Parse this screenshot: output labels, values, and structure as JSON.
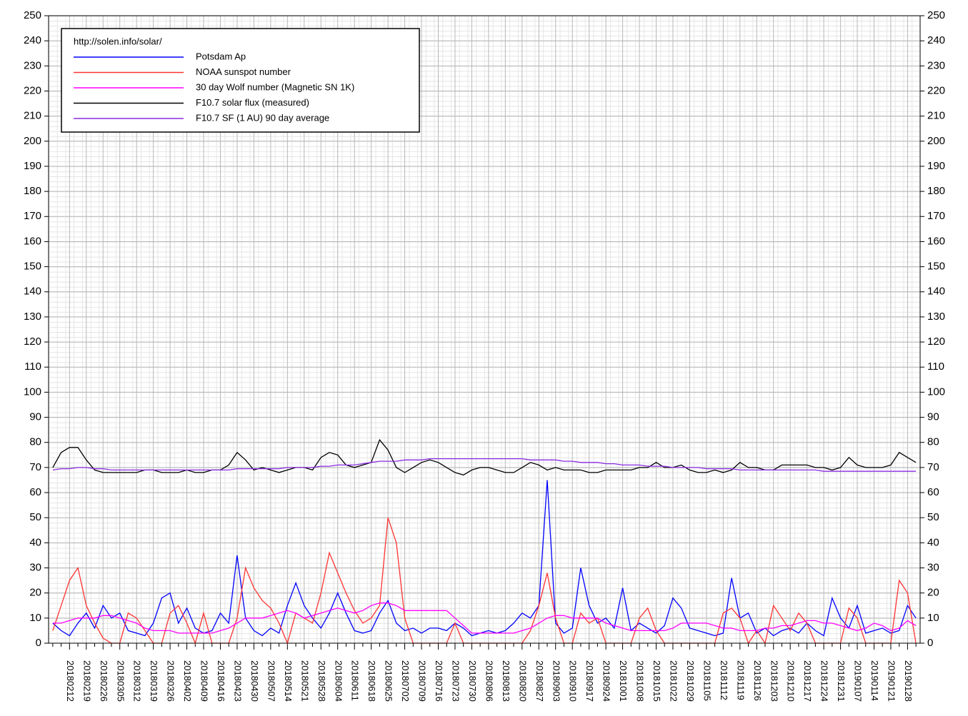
{
  "chart_data": {
    "type": "line",
    "legend_title": "http://solen.info/solar/",
    "legend_position": "upper left",
    "grid": true,
    "ylim": [
      0,
      250
    ],
    "yticks": [
      0,
      10,
      20,
      30,
      40,
      50,
      60,
      70,
      80,
      90,
      100,
      110,
      120,
      130,
      140,
      150,
      160,
      170,
      180,
      190,
      200,
      210,
      220,
      230,
      240,
      250
    ],
    "categories": [
      null,
      null,
      "20180212",
      null,
      "20180219",
      null,
      "20180226",
      null,
      "20180305",
      null,
      "20180312",
      null,
      "20180319",
      null,
      "20180326",
      null,
      "20180402",
      null,
      "20180409",
      null,
      "20180416",
      null,
      "20180423",
      null,
      "20180430",
      null,
      "20180507",
      null,
      "20180514",
      null,
      "20180521",
      null,
      "20180528",
      null,
      "20180604",
      null,
      "20180611",
      null,
      "20180618",
      null,
      "20180625",
      null,
      "20180702",
      null,
      "20180709",
      null,
      "20180716",
      null,
      "20180723",
      null,
      "20180730",
      null,
      "20180806",
      null,
      "20180813",
      null,
      "20180820",
      null,
      "20180827",
      null,
      "20180903",
      null,
      "20180910",
      null,
      "20180917",
      null,
      "20180924",
      null,
      "20181001",
      null,
      "20181008",
      null,
      "20181015",
      null,
      "20181022",
      null,
      "20181029",
      null,
      "20181105",
      null,
      "20181112",
      null,
      "20181119",
      null,
      "20181126",
      null,
      "20181203",
      null,
      "20181210",
      null,
      "20181217",
      null,
      "20181224",
      null,
      "20181231",
      null,
      "20190107",
      null,
      "20190114",
      null,
      "20190121",
      null,
      "20190128",
      null
    ],
    "series": [
      {
        "name": "Potsdam Ap",
        "color": "#0000ff",
        "values": [
          8,
          5,
          3,
          8,
          12,
          6,
          15,
          10,
          12,
          5,
          4,
          3,
          8,
          18,
          20,
          8,
          14,
          6,
          4,
          5,
          12,
          8,
          35,
          10,
          5,
          3,
          6,
          4,
          15,
          24,
          15,
          10,
          6,
          12,
          20,
          12,
          5,
          4,
          5,
          12,
          17,
          8,
          5,
          6,
          4,
          6,
          6,
          5,
          8,
          6,
          3,
          4,
          5,
          4,
          5,
          8,
          12,
          10,
          15,
          65,
          8,
          4,
          6,
          30,
          15,
          8,
          10,
          6,
          22,
          5,
          8,
          6,
          4,
          7,
          18,
          14,
          6,
          5,
          4,
          3,
          4,
          26,
          10,
          12,
          4,
          6,
          3,
          5,
          6,
          4,
          8,
          5,
          3,
          18,
          10,
          6,
          15,
          4,
          5,
          6,
          4,
          5,
          15,
          10
        ]
      },
      {
        "name": "NOAA sunspot number",
        "color": "#ff3333",
        "values": [
          5,
          15,
          25,
          30,
          15,
          8,
          2,
          0,
          0,
          12,
          10,
          5,
          0,
          0,
          12,
          15,
          8,
          0,
          12,
          0,
          0,
          0,
          10,
          30,
          22,
          17,
          14,
          8,
          0,
          12,
          10,
          8,
          20,
          36,
          28,
          20,
          13,
          8,
          10,
          15,
          50,
          40,
          10,
          0,
          0,
          0,
          0,
          0,
          8,
          0,
          0,
          0,
          0,
          0,
          0,
          0,
          0,
          5,
          15,
          28,
          10,
          0,
          0,
          12,
          8,
          10,
          0,
          0,
          0,
          0,
          10,
          14,
          5,
          0,
          0,
          0,
          0,
          0,
          0,
          0,
          12,
          14,
          10,
          0,
          5,
          0,
          15,
          10,
          5,
          12,
          8,
          0,
          0,
          0,
          0,
          14,
          10,
          0,
          0,
          0,
          0,
          25,
          20,
          0
        ]
      },
      {
        "name": "30 day Wolf number (Magnetic SN 1K)",
        "color": "#ff00ff",
        "values": [
          8,
          8,
          9,
          10,
          10,
          10,
          11,
          11,
          10,
          9,
          8,
          6,
          5,
          5,
          5,
          4,
          4,
          4,
          4,
          4,
          5,
          6,
          8,
          10,
          10,
          10,
          11,
          12,
          13,
          12,
          10,
          11,
          12,
          13,
          14,
          13,
          12,
          13,
          15,
          16,
          16,
          15,
          13,
          13,
          13,
          13,
          13,
          13,
          10,
          7,
          4,
          4,
          4,
          4,
          4,
          4,
          5,
          6,
          8,
          10,
          11,
          11,
          10,
          10,
          10,
          10,
          8,
          7,
          6,
          5,
          5,
          5,
          5,
          5,
          6,
          8,
          8,
          8,
          8,
          7,
          6,
          6,
          5,
          5,
          5,
          6,
          6,
          7,
          7,
          8,
          9,
          9,
          8,
          8,
          7,
          6,
          5,
          6,
          8,
          7,
          5,
          6,
          9,
          7
        ]
      },
      {
        "name": "F10.7 solar flux (measured)",
        "color": "#000000",
        "values": [
          70,
          76,
          78,
          78,
          73,
          69,
          68,
          68,
          68,
          68,
          68,
          69,
          69,
          68,
          68,
          68,
          69,
          68,
          68,
          69,
          69,
          71,
          76,
          73,
          69,
          70,
          69,
          68,
          69,
          70,
          70,
          69,
          74,
          76,
          75,
          71,
          70,
          71,
          72,
          81,
          77,
          70,
          68,
          70,
          72,
          73,
          72,
          70,
          68,
          67,
          69,
          70,
          70,
          69,
          68,
          68,
          70,
          72,
          71,
          69,
          70,
          69,
          69,
          69,
          68,
          68,
          69,
          69,
          69,
          69,
          70,
          70,
          72,
          70,
          70,
          71,
          69,
          68,
          68,
          69,
          68,
          69,
          72,
          70,
          70,
          69,
          69,
          71,
          71,
          71,
          71,
          70,
          70,
          69,
          70,
          74,
          71,
          70,
          70,
          70,
          71,
          76,
          74,
          72
        ]
      },
      {
        "name": "F10.7 SF (1 AU) 90 day average",
        "color": "#8a2be2",
        "values": [
          69,
          69.5,
          69.5,
          70,
          70,
          69.5,
          69.5,
          69,
          69,
          69,
          69,
          69,
          69,
          69,
          69,
          69,
          69,
          69,
          69,
          69,
          69,
          69,
          69.5,
          69.5,
          69.5,
          69.5,
          69.5,
          69.5,
          70,
          70,
          70,
          70,
          70.5,
          70.5,
          71,
          71,
          71,
          71.5,
          72,
          72.5,
          72.5,
          72.5,
          73,
          73,
          73,
          73.5,
          73.5,
          73.5,
          73.5,
          73.5,
          73.5,
          73.5,
          73.5,
          73.5,
          73.5,
          73.5,
          73.5,
          73,
          73,
          73,
          73,
          72.5,
          72.5,
          72,
          72,
          72,
          71.5,
          71.5,
          71,
          71,
          71,
          70.5,
          70.5,
          70.5,
          70,
          70,
          70,
          70,
          69.5,
          69.5,
          69.5,
          69.5,
          69,
          69,
          69,
          69,
          69,
          69,
          69,
          69,
          69,
          69,
          68.5,
          68.5,
          68.5,
          68.5,
          68.5,
          68.5,
          68.5,
          68.5,
          68.5,
          68.5,
          68.5,
          68.5
        ]
      }
    ]
  }
}
